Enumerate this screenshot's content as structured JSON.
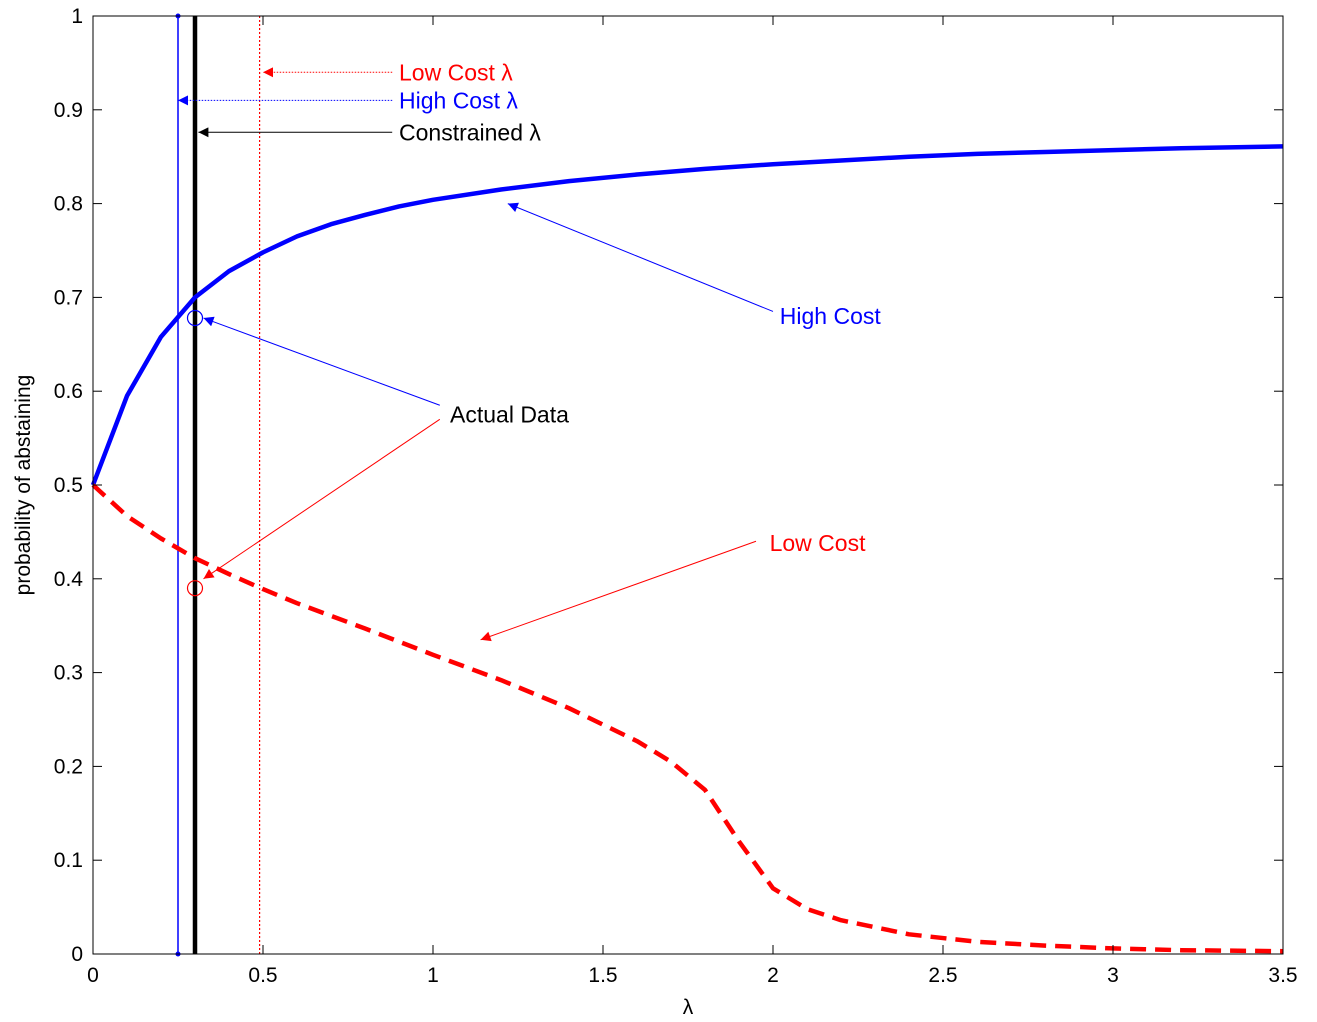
{
  "chart_data": {
    "type": "line",
    "title": "",
    "xlabel": "λ",
    "ylabel": "probability of abstaining",
    "xlim": [
      0,
      3.5
    ],
    "ylim": [
      0,
      1
    ],
    "xticks": [
      0,
      0.5,
      1,
      1.5,
      2,
      2.5,
      3,
      3.5
    ],
    "xtick_labels": [
      "0",
      "0.5",
      "1",
      "1.5",
      "2",
      "2.5",
      "3",
      "3.5"
    ],
    "yticks": [
      0,
      0.1,
      0.2,
      0.3,
      0.4,
      0.5,
      0.6,
      0.7,
      0.8,
      0.9,
      1
    ],
    "ytick_labels": [
      "0",
      "0.1",
      "0.2",
      "0.3",
      "0.4",
      "0.5",
      "0.6",
      "0.7",
      "0.8",
      "0.9",
      "1"
    ],
    "grid": false,
    "series": [
      {
        "name": "High Cost",
        "color": "#0000ff",
        "style": "solid",
        "x": [
          0,
          0.1,
          0.2,
          0.3,
          0.4,
          0.5,
          0.6,
          0.7,
          0.8,
          0.9,
          1.0,
          1.2,
          1.4,
          1.6,
          1.8,
          2.0,
          2.2,
          2.4,
          2.6,
          2.8,
          3.0,
          3.2,
          3.5
        ],
        "y": [
          0.5,
          0.595,
          0.658,
          0.7,
          0.728,
          0.748,
          0.765,
          0.778,
          0.788,
          0.797,
          0.804,
          0.815,
          0.824,
          0.831,
          0.837,
          0.842,
          0.846,
          0.85,
          0.853,
          0.855,
          0.857,
          0.859,
          0.861
        ]
      },
      {
        "name": "Low Cost",
        "color": "#ff0000",
        "style": "dashed",
        "x": [
          0,
          0.1,
          0.2,
          0.3,
          0.4,
          0.5,
          0.6,
          0.8,
          1.0,
          1.2,
          1.4,
          1.6,
          1.7,
          1.8,
          1.9,
          2.0,
          2.1,
          2.2,
          2.4,
          2.6,
          2.8,
          3.0,
          3.2,
          3.5
        ],
        "y": [
          0.5,
          0.467,
          0.443,
          0.422,
          0.405,
          0.389,
          0.374,
          0.347,
          0.319,
          0.292,
          0.262,
          0.227,
          0.205,
          0.175,
          0.12,
          0.07,
          0.048,
          0.036,
          0.021,
          0.013,
          0.009,
          0.006,
          0.004,
          0.003
        ]
      }
    ],
    "vertical_lines": [
      {
        "name": "High Cost λ",
        "x": 0.25,
        "color": "#0000ff",
        "style": "solid-marked"
      },
      {
        "name": "Constrained λ",
        "x": 0.3,
        "color": "#000000",
        "style": "bold"
      },
      {
        "name": "Low Cost λ",
        "x": 0.49,
        "color": "#ff0000",
        "style": "dotted"
      }
    ],
    "actual_data_points": [
      {
        "x": 0.3,
        "y": 0.678,
        "color": "#0000ff"
      },
      {
        "x": 0.3,
        "y": 0.39,
        "color": "#ff0000"
      }
    ],
    "annotations": [
      {
        "text": "Low Cost λ",
        "color": "#ff0000",
        "label_at": [
          0.9,
          0.94
        ],
        "arrow_from": [
          0.88,
          0.94
        ],
        "arrow_to": [
          0.5,
          0.94
        ]
      },
      {
        "text": "High Cost λ",
        "color": "#0000ff",
        "label_at": [
          0.9,
          0.91
        ],
        "arrow_from": [
          0.88,
          0.91
        ],
        "arrow_to": [
          0.25,
          0.91
        ]
      },
      {
        "text": "Constrained λ",
        "color": "#000000",
        "label_at": [
          0.9,
          0.876
        ],
        "arrow_from": [
          0.88,
          0.876
        ],
        "arrow_to": [
          0.31,
          0.876
        ]
      },
      {
        "text": "High Cost",
        "color": "#0000ff",
        "label_at": [
          2.02,
          0.68
        ],
        "arrow_from": [
          2.0,
          0.685
        ],
        "arrow_to": [
          1.22,
          0.8
        ]
      },
      {
        "text": "Actual Data",
        "color": "#000000",
        "label_at": [
          1.05,
          0.575
        ],
        "arrow_from": [
          1.02,
          0.585
        ],
        "arrow_to": [
          0.325,
          0.678
        ],
        "arrow_color": "#0000ff"
      },
      {
        "text": "",
        "color": "#000000",
        "arrow_from": [
          1.02,
          0.57
        ],
        "arrow_to": [
          0.325,
          0.4
        ],
        "arrow_color": "#ff0000"
      },
      {
        "text": "Low Cost",
        "color": "#ff0000",
        "label_at": [
          1.99,
          0.438
        ],
        "arrow_from": [
          1.95,
          0.44
        ],
        "arrow_to": [
          1.14,
          0.335
        ]
      }
    ]
  }
}
